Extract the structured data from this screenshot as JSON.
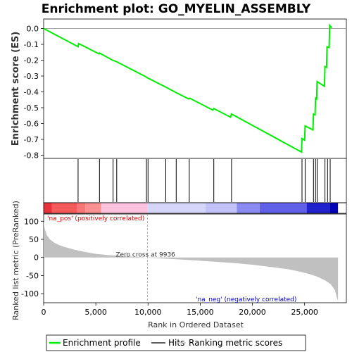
{
  "chart_data": {
    "type": "line",
    "title": "Enrichment plot: GO_MYELIN_ASSEMBLY",
    "es_panel": {
      "ylabel": "Enrichment score (ES)",
      "ylim": [
        -0.82,
        0.06
      ],
      "yticks": [
        0.0,
        -0.1,
        -0.2,
        -0.3,
        -0.4,
        -0.5,
        -0.6,
        -0.7,
        -0.8
      ],
      "ytick_labels": [
        "0.0",
        "-0.1",
        "-0.2",
        "-0.3",
        "-0.4",
        "-0.5",
        "-0.6",
        "-0.7",
        "-0.8"
      ],
      "grid": false,
      "line_color": "#00ee00",
      "series": [
        {
          "x": [
            0,
            3300,
            3350,
            5300,
            5350,
            6600,
            7000,
            9800,
            9900,
            11700,
            12700,
            13900,
            14000,
            16200,
            16300,
            17900,
            18000,
            24700,
            24750,
            25000,
            25050,
            25800,
            25850,
            26000,
            26050,
            26150,
            26200,
            26900,
            26950,
            27100,
            27150,
            27350,
            27400,
            27600
          ],
          "y": [
            0.0,
            -0.115,
            -0.095,
            -0.16,
            -0.155,
            -0.2,
            -0.21,
            -0.305,
            -0.31,
            -0.37,
            -0.405,
            -0.445,
            -0.44,
            -0.515,
            -0.505,
            -0.56,
            -0.54,
            -0.78,
            -0.695,
            -0.705,
            -0.615,
            -0.64,
            -0.54,
            -0.545,
            -0.44,
            -0.445,
            -0.335,
            -0.365,
            -0.24,
            -0.245,
            -0.115,
            -0.12,
            0.02,
            0.005
          ]
        }
      ]
    },
    "hits_panel": {
      "hit_ranks": [
        3300,
        5350,
        6650,
        7000,
        9850,
        10000,
        11700,
        12700,
        13950,
        16300,
        18000,
        24750,
        25050,
        25850,
        26050,
        26200,
        26950,
        27200,
        27450
      ]
    },
    "color_bar": {
      "segments": [
        {
          "start": 0,
          "end": 800,
          "color": "#e8323a"
        },
        {
          "start": 800,
          "end": 3200,
          "color": "#f55a5a"
        },
        {
          "start": 3200,
          "end": 4000,
          "color": "#f77777"
        },
        {
          "start": 4000,
          "end": 5500,
          "color": "#fa9090"
        },
        {
          "start": 5500,
          "end": 9936,
          "color": "#fcc2dd"
        },
        {
          "start": 9936,
          "end": 15500,
          "color": "#d6d6f8"
        },
        {
          "start": 15500,
          "end": 18500,
          "color": "#c2c2f8"
        },
        {
          "start": 18500,
          "end": 20700,
          "color": "#8a8af0"
        },
        {
          "start": 20700,
          "end": 25200,
          "color": "#6060e8"
        },
        {
          "start": 25200,
          "end": 27400,
          "color": "#2222cc"
        },
        {
          "start": 27400,
          "end": 28200,
          "color": "#0000bb"
        }
      ]
    },
    "ranked_panel": {
      "ylabel": "Ranked list metric (PreRanked)",
      "xlabel": "Rank in Ordered Dataset",
      "ylim": [
        -125,
        120
      ],
      "yticks": [
        100,
        50,
        0,
        -50,
        -100
      ],
      "ytick_labels": [
        "100",
        "50",
        "0",
        "-50",
        "-100"
      ],
      "xlim": [
        0,
        29000
      ],
      "xticks": [
        0,
        5000,
        10000,
        15000,
        20000,
        25000
      ],
      "xtick_labels": [
        "0",
        "5,000",
        "10,000",
        "15,000",
        "20,000",
        "25,000"
      ],
      "fill_color": "#c0c0c0",
      "metric_curve": {
        "x": [
          0,
          100,
          300,
          600,
          1000,
          1500,
          2000,
          3000,
          4000,
          5000,
          6000,
          7000,
          8000,
          9000,
          9936,
          11000,
          12000,
          14000,
          16000,
          18000,
          20000,
          22000,
          23500,
          24500,
          25500,
          26300,
          27000,
          27500,
          27900,
          28100,
          28200
        ],
        "y": [
          100,
          80,
          62,
          50,
          41,
          34,
          29,
          21,
          15,
          10,
          7,
          5,
          3,
          1.5,
          0,
          -2,
          -4,
          -7,
          -11,
          -15,
          -20,
          -27,
          -33,
          -39,
          -46,
          -54,
          -64,
          -74,
          -90,
          -112,
          -120
        ]
      },
      "zero_cross_label": "Zero cross at 9936",
      "zero_cross_rank": 9936,
      "pos_label": "'na_pos' (positively correlated)",
      "pos_label_color": "#dd0000",
      "neg_label": "'na_neg' (negatively correlated)",
      "neg_label_color": "#0000cc"
    },
    "legend": {
      "placement": "bottom",
      "entries": [
        {
          "label": "Enrichment profile",
          "color": "#00ee00"
        },
        {
          "label": "Hits",
          "color": "#000000"
        },
        {
          "label": "Ranking metric scores",
          "color": "#c0c0c0"
        }
      ]
    }
  }
}
